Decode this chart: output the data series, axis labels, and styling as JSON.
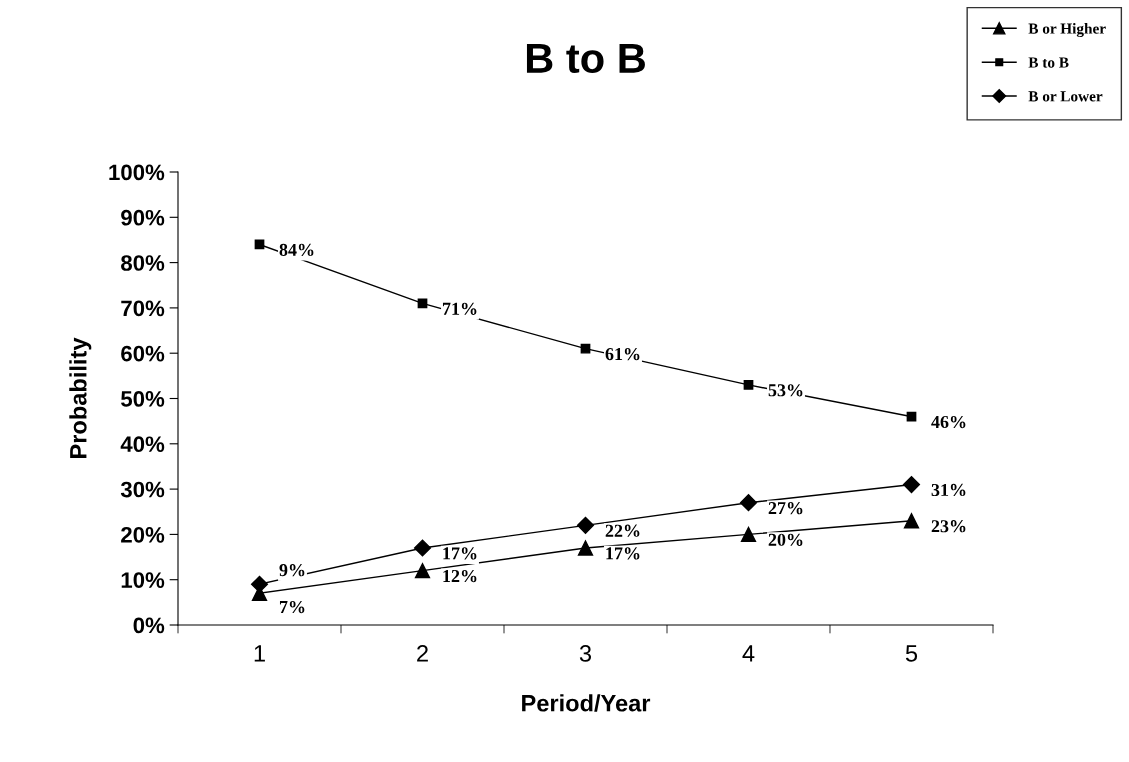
{
  "chart_data": {
    "type": "line",
    "title": "B to B",
    "xlabel": "Period/Year",
    "ylabel": "Probability",
    "categories": [
      "1",
      "2",
      "3",
      "4",
      "5"
    ],
    "series": [
      {
        "name": "B or Higher",
        "color": "#000000",
        "marker": "triangle",
        "values": [
          7,
          12,
          17,
          20,
          23
        ],
        "value_labels": [
          "7%",
          "12%",
          "17%",
          "20%",
          "23%"
        ]
      },
      {
        "name": "B to B",
        "color": "#000000",
        "marker": "square",
        "values": [
          84,
          71,
          61,
          53,
          46
        ],
        "value_labels": [
          "84%",
          "71%",
          "61%",
          "53%",
          "46%"
        ]
      },
      {
        "name": "B or Lower",
        "color": "#000000",
        "marker": "diamond",
        "values": [
          9,
          17,
          22,
          27,
          31
        ],
        "value_labels": [
          "9%",
          "17%",
          "22%",
          "27%",
          "31%"
        ]
      }
    ],
    "ylim": [
      0,
      100
    ],
    "yticks": [
      {
        "value": 0,
        "label": "0%"
      },
      {
        "value": 10,
        "label": "10%"
      },
      {
        "value": 20,
        "label": "20%"
      },
      {
        "value": 30,
        "label": "30%"
      },
      {
        "value": 40,
        "label": "40%"
      },
      {
        "value": 50,
        "label": "50%"
      },
      {
        "value": 60,
        "label": "60%"
      },
      {
        "value": 70,
        "label": "70%"
      },
      {
        "value": 80,
        "label": "80%"
      },
      {
        "value": 90,
        "label": "90%"
      },
      {
        "value": 100,
        "label": "100%"
      }
    ],
    "grid": false,
    "legend": "top right",
    "line_style": "solid"
  }
}
